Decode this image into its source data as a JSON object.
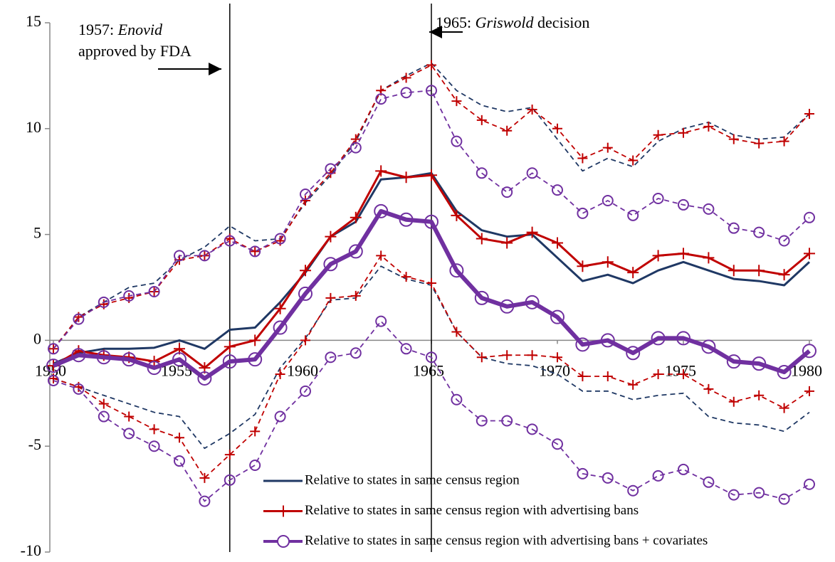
{
  "chart_data": {
    "type": "line",
    "x": [
      1950,
      1951,
      1952,
      1953,
      1954,
      1955,
      1956,
      1957,
      1958,
      1959,
      1960,
      1961,
      1962,
      1963,
      1964,
      1965,
      1966,
      1967,
      1968,
      1969,
      1970,
      1971,
      1972,
      1973,
      1974,
      1975,
      1976,
      1977,
      1978,
      1979,
      1980
    ],
    "xlim": [
      1950,
      1980
    ],
    "xticks": [
      1950,
      1955,
      1960,
      1965,
      1970,
      1975,
      1980
    ],
    "ylim": [
      -10,
      15
    ],
    "yticks": [
      -10,
      -5,
      0,
      5,
      10,
      15
    ],
    "legend": "bottom-right",
    "series": [
      {
        "name": "Relative to states in same census region",
        "color": "#1f3864",
        "marker": "none",
        "width": 3,
        "values": [
          -1.1,
          -0.6,
          -0.4,
          -0.4,
          -0.35,
          0.0,
          -0.4,
          0.5,
          0.6,
          1.8,
          3.2,
          4.9,
          5.6,
          7.6,
          7.7,
          7.9,
          6.1,
          5.2,
          4.9,
          5.0,
          3.9,
          2.8,
          3.1,
          2.7,
          3.3,
          3.7,
          3.3,
          2.9,
          2.8,
          2.6,
          3.7
        ],
        "lower": [
          -1.8,
          -2.2,
          -2.6,
          -3.0,
          -3.4,
          -3.6,
          -5.1,
          -4.4,
          -3.5,
          -1.3,
          0.1,
          1.9,
          2.0,
          3.5,
          2.9,
          2.6,
          0.4,
          -0.8,
          -1.1,
          -1.2,
          -1.6,
          -2.4,
          -2.4,
          -2.8,
          -2.6,
          -2.5,
          -3.6,
          -3.9,
          -4.0,
          -4.3,
          -3.4
        ],
        "upper": [
          -0.4,
          1.1,
          1.8,
          2.5,
          2.7,
          3.8,
          4.4,
          5.4,
          4.7,
          4.8,
          6.5,
          7.8,
          9.4,
          11.8,
          12.5,
          13.1,
          11.8,
          11.1,
          10.8,
          11.0,
          9.5,
          8.0,
          8.6,
          8.2,
          9.4,
          10.0,
          10.3,
          9.7,
          9.5,
          9.6,
          10.7
        ]
      },
      {
        "name": "Relative to states in same census region with advertising bans",
        "color": "#c00000",
        "marker": "plus",
        "width": 3,
        "values": [
          -1.2,
          -0.5,
          -0.7,
          -0.8,
          -1.0,
          -0.4,
          -1.3,
          -0.3,
          0.0,
          1.5,
          3.3,
          4.9,
          5.8,
          8.0,
          7.7,
          7.8,
          5.9,
          4.8,
          4.6,
          5.1,
          4.6,
          3.5,
          3.7,
          3.2,
          4.0,
          4.1,
          3.9,
          3.3,
          3.3,
          3.1,
          4.1
        ],
        "lower": [
          -1.8,
          -2.2,
          -3.0,
          -3.6,
          -4.2,
          -4.6,
          -6.5,
          -5.4,
          -4.3,
          -1.6,
          0.0,
          2.0,
          2.1,
          4.0,
          3.0,
          2.7,
          0.4,
          -0.8,
          -0.7,
          -0.7,
          -0.8,
          -1.7,
          -1.7,
          -2.1,
          -1.6,
          -1.6,
          -2.3,
          -2.9,
          -2.6,
          -3.2,
          -2.4
        ],
        "upper": [
          -0.4,
          1.1,
          1.7,
          2.0,
          2.3,
          3.8,
          4.0,
          4.8,
          4.2,
          4.7,
          6.6,
          7.9,
          9.5,
          11.8,
          12.4,
          13.0,
          11.3,
          10.4,
          9.9,
          10.9,
          10.0,
          8.6,
          9.1,
          8.5,
          9.7,
          9.8,
          10.1,
          9.5,
          9.3,
          9.4,
          10.7
        ]
      },
      {
        "name": "Relative to states in same census region with advertising bans + covariates",
        "color": "#7030a0",
        "marker": "circle",
        "width": 6,
        "values": [
          -1.2,
          -0.7,
          -0.8,
          -0.9,
          -1.3,
          -0.9,
          -1.8,
          -1.0,
          -0.9,
          0.6,
          2.2,
          3.6,
          4.2,
          6.1,
          5.7,
          5.6,
          3.3,
          2.0,
          1.6,
          1.8,
          1.1,
          -0.2,
          0.0,
          -0.6,
          0.1,
          0.1,
          -0.3,
          -1.0,
          -1.1,
          -1.5,
          -0.5
        ],
        "lower": [
          -1.9,
          -2.3,
          -3.6,
          -4.4,
          -5.0,
          -5.7,
          -7.6,
          -6.6,
          -5.9,
          -3.6,
          -2.4,
          -0.8,
          -0.6,
          0.9,
          -0.4,
          -0.8,
          -2.8,
          -3.8,
          -3.8,
          -4.2,
          -4.9,
          -6.3,
          -6.5,
          -7.1,
          -6.4,
          -6.1,
          -6.7,
          -7.3,
          -7.2,
          -7.5,
          -6.8
        ],
        "upper": [
          -0.4,
          1.0,
          1.8,
          2.1,
          2.3,
          4.0,
          4.0,
          4.7,
          4.2,
          4.8,
          6.9,
          8.1,
          9.1,
          11.4,
          11.7,
          11.8,
          9.4,
          7.9,
          7.0,
          7.9,
          7.1,
          6.0,
          6.6,
          5.9,
          6.7,
          6.4,
          6.2,
          5.3,
          5.1,
          4.7,
          5.8
        ]
      }
    ],
    "annotations": [
      {
        "x": 1957,
        "lines": [
          [
            {
              "text": "1957: "
            },
            {
              "text": "Enovid",
              "italic": true
            }
          ],
          [
            {
              "text": "approved by FDA"
            }
          ]
        ]
      },
      {
        "x": 1965,
        "lines": [
          [
            {
              "text": "1965: "
            },
            {
              "text": "Griswold",
              "italic": true
            },
            {
              "text": " decision"
            }
          ]
        ]
      }
    ]
  }
}
